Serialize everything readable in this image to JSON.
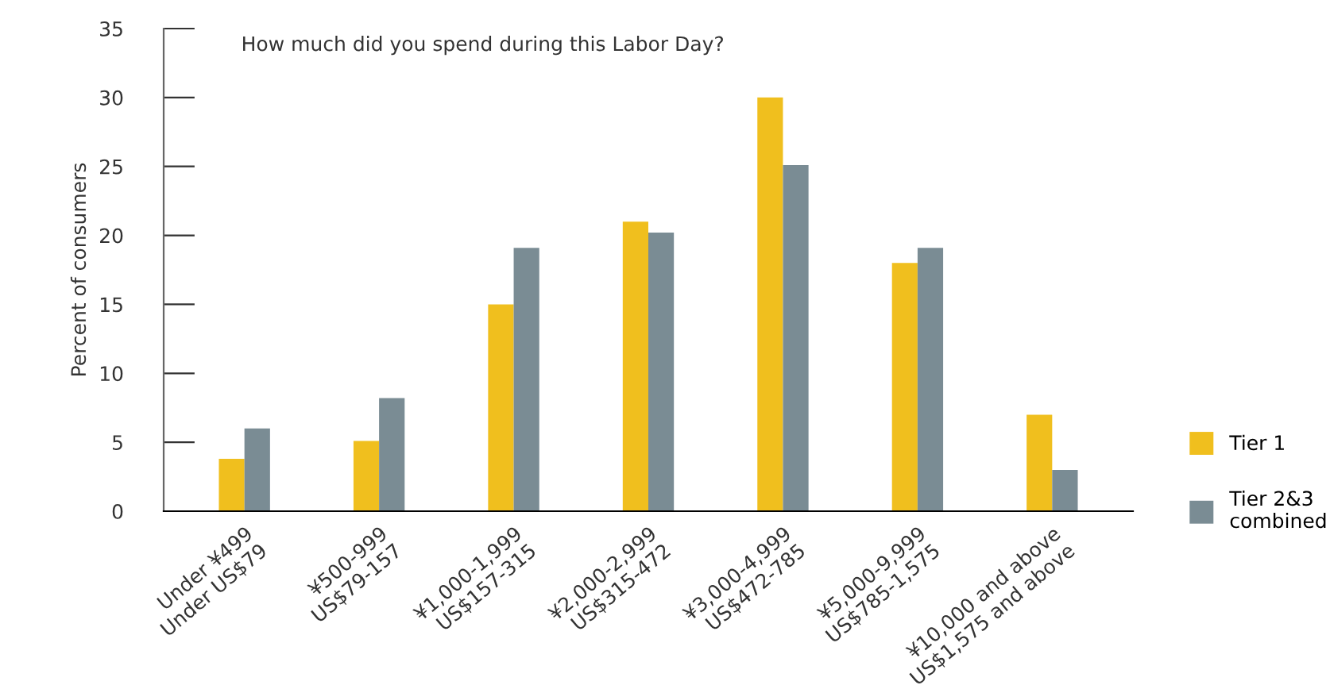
{
  "chart_data": {
    "type": "bar",
    "title": "How much did you spend during this Labor Day?",
    "ylabel": "Percent of consumers",
    "categories": [
      "Under ¥499\nUnder US$79",
      "¥500-999\nUS$79-157",
      "¥1,000-1,999\nUS$157-315",
      "¥2,000-2,999\nUS$315-472",
      "¥3,000-4,999\nUS$472-785",
      "¥5,000-9,999\nUS$785-1,575",
      "¥10,000 and above\nUS$1,575 and above"
    ],
    "series": [
      {
        "name": "Tier 1",
        "color": "#f0bf1e",
        "values": [
          3.8,
          5.1,
          15,
          21,
          30,
          18,
          7
        ]
      },
      {
        "name": "Tier 2&3\ncombined",
        "color": "#7a8c94",
        "values": [
          6,
          8.2,
          19.1,
          20.2,
          25.1,
          19.1,
          3
        ]
      }
    ],
    "ylim": [
      0,
      35
    ],
    "yticks": [
      0,
      5,
      10,
      15,
      20,
      25,
      30,
      35
    ],
    "grid": false,
    "legend": "bottom right"
  }
}
